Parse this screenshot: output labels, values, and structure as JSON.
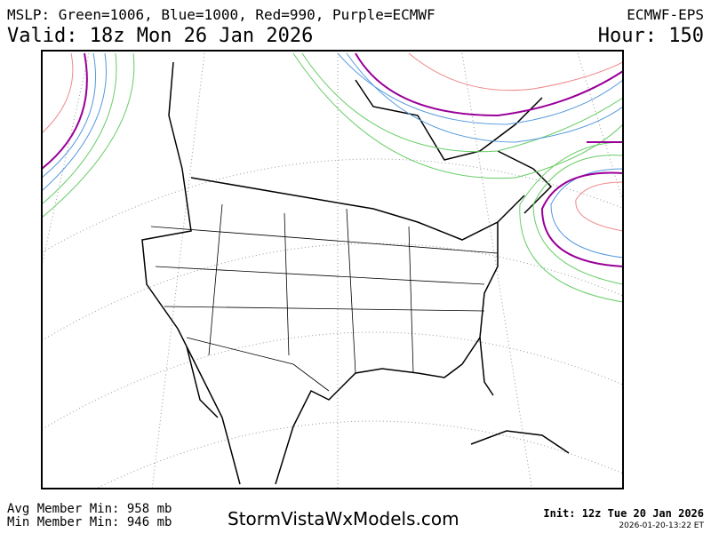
{
  "header": {
    "legend": "MSLP: Green=1006, Blue=1000, Red=990, Purple=ECMWF",
    "model": "ECMWF-EPS",
    "valid": "Valid: 18z Mon 26 Jan 2026",
    "hour": "Hour: 150"
  },
  "footer": {
    "avg_min": "Avg Member Min: 958 mb",
    "min_min": "Min Member Min: 946 mb",
    "site": "StormVistaWxModels.com",
    "init": "Init: 12z Tue 20 Jan 2026",
    "timestamp": "2026-01-20-13:22 ET"
  }
}
